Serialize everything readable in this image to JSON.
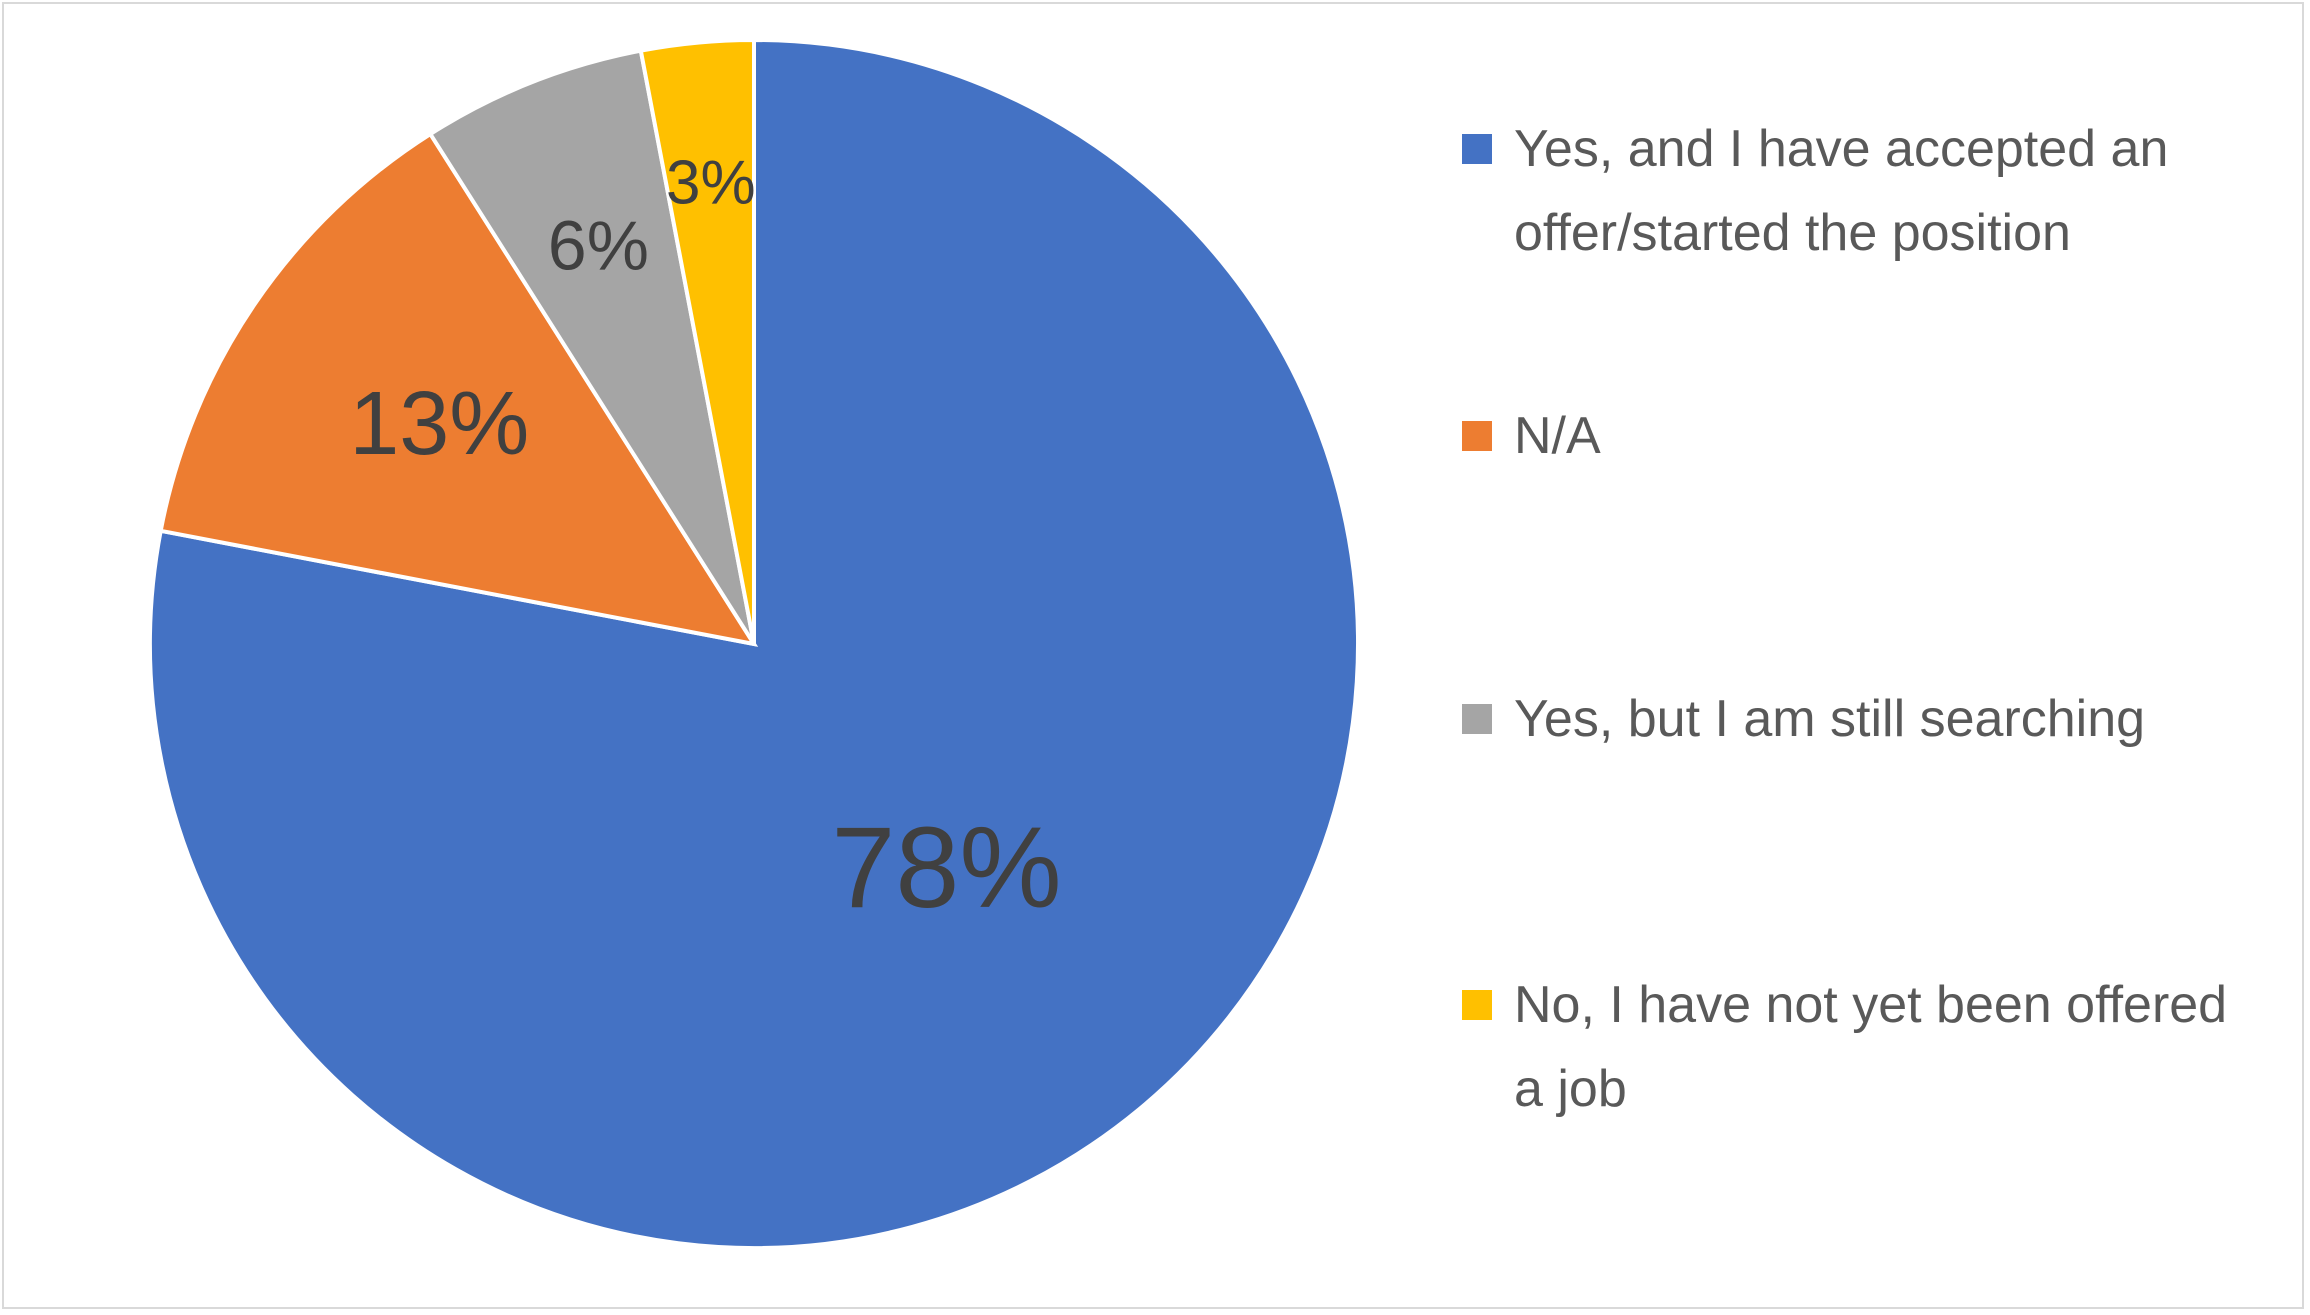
{
  "chart_data": {
    "type": "pie",
    "categories": [
      "Yes, and I have accepted an offer/started the position",
      "N/A",
      "Yes, but I am still searching",
      "No, I have not yet been offered a job"
    ],
    "values": [
      78,
      13,
      6,
      3
    ],
    "value_labels": [
      "78%",
      "13%",
      "6%",
      "3%"
    ],
    "colors": [
      "#4472c4",
      "#ed7d31",
      "#a5a5a5",
      "#ffc000"
    ],
    "legend": "right"
  }
}
